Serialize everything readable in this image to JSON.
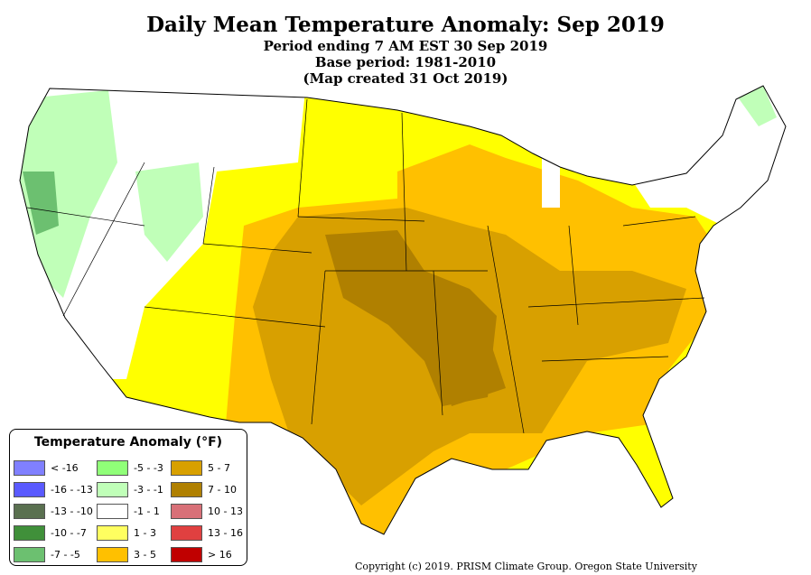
{
  "title": "Daily Mean Temperature Anomaly: Sep 2019",
  "subtitle1": "Period ending 7 AM EST 30 Sep 2019",
  "subtitle2": "Base period: 1981-2010",
  "subtitle3": "(Map created 31 Oct 2019)",
  "legend": {
    "title": "Temperature Anomaly (°F)",
    "items": [
      {
        "label": "< -16",
        "color": "#8080ff"
      },
      {
        "label": "-16 - -13",
        "color": "#5a5aff"
      },
      {
        "label": "-13 - -10",
        "color": "#5a7050"
      },
      {
        "label": "-10 - -7",
        "color": "#40903a"
      },
      {
        "label": "-7 - -5",
        "color": "#6cc070"
      },
      {
        "label": "-5 - -3",
        "color": "#90ff78"
      },
      {
        "label": "-3 - -1",
        "color": "#c0ffb8"
      },
      {
        "label": "-1 - 1",
        "color": "#ffffff"
      },
      {
        "label": "1 - 3",
        "color": "#ffff60"
      },
      {
        "label": "3 - 5",
        "color": "#ffc000"
      },
      {
        "label": "5 - 7",
        "color": "#d8a000"
      },
      {
        "label": "7 - 10",
        "color": "#b08000"
      },
      {
        "label": "10 - 13",
        "color": "#d87078"
      },
      {
        "label": "13 - 16",
        "color": "#e04040"
      },
      {
        "label": "> 16",
        "color": "#c00000"
      }
    ]
  },
  "copyright": "Copyright (c) 2019. PRISM Climate Group. Oregon State University"
}
